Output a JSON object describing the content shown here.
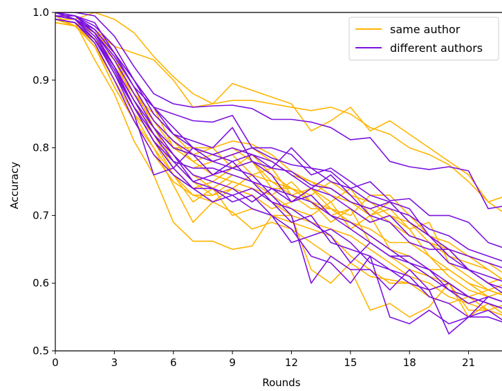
{
  "chart_data": {
    "type": "line",
    "xlabel": "Rounds",
    "ylabel": "Accuracy",
    "xlim": [
      0,
      22.7
    ],
    "ylim": [
      0.5,
      1.0
    ],
    "xticks": [
      "0",
      "3",
      "6",
      "9",
      "12",
      "15",
      "18",
      "21"
    ],
    "yticks": [
      "0.5",
      "0.6",
      "0.7",
      "0.8",
      "0.9",
      "1.0"
    ],
    "legend": {
      "position": "upper right",
      "entries": [
        "same author",
        "different authors"
      ]
    },
    "colors": {
      "same author": "#ffb400",
      "different authors": "#7b11e0"
    },
    "x": [
      0,
      1,
      2,
      3,
      4,
      5,
      6,
      7,
      8,
      9,
      10,
      11,
      12,
      13,
      14,
      15,
      16,
      17,
      18,
      19,
      20,
      21,
      22,
      23
    ],
    "series": [
      {
        "group": "same author",
        "values": [
          0.99,
          0.99,
          1.0,
          0.99,
          0.97,
          0.935,
          0.905,
          0.88,
          0.865,
          0.87,
          0.87,
          0.865,
          0.86,
          0.855,
          0.86,
          0.85,
          0.83,
          0.82,
          0.8,
          0.79,
          0.775,
          0.75,
          0.72,
          0.73
        ]
      },
      {
        "group": "same author",
        "values": [
          0.995,
          0.99,
          0.97,
          0.95,
          0.94,
          0.93,
          0.9,
          0.86,
          0.865,
          0.895,
          0.885,
          0.875,
          0.865,
          0.825,
          0.84,
          0.86,
          0.825,
          0.84,
          0.82,
          0.8,
          0.78,
          0.76,
          0.72,
          0.7
        ]
      },
      {
        "group": "same author",
        "values": [
          0.99,
          0.985,
          0.93,
          0.88,
          0.81,
          0.76,
          0.69,
          0.662,
          0.662,
          0.65,
          0.655,
          0.7,
          0.7,
          0.62,
          0.6,
          0.63,
          0.61,
          0.605,
          0.6,
          0.59,
          0.6,
          0.56,
          0.56,
          0.57
        ]
      },
      {
        "group": "same author",
        "values": [
          0.995,
          0.98,
          0.95,
          0.9,
          0.85,
          0.8,
          0.745,
          0.69,
          0.72,
          0.705,
          0.68,
          0.69,
          0.68,
          0.66,
          0.64,
          0.62,
          0.56,
          0.57,
          0.55,
          0.565,
          0.6,
          0.55,
          0.57,
          0.55
        ]
      },
      {
        "group": "same author",
        "values": [
          1.0,
          0.99,
          0.96,
          0.92,
          0.88,
          0.85,
          0.82,
          0.79,
          0.8,
          0.77,
          0.78,
          0.74,
          0.74,
          0.72,
          0.69,
          0.71,
          0.66,
          0.64,
          0.62,
          0.61,
          0.59,
          0.58,
          0.57,
          0.56
        ]
      },
      {
        "group": "same author",
        "values": [
          0.985,
          0.98,
          0.96,
          0.92,
          0.86,
          0.83,
          0.79,
          0.76,
          0.74,
          0.76,
          0.75,
          0.73,
          0.71,
          0.7,
          0.72,
          0.68,
          0.7,
          0.65,
          0.63,
          0.61,
          0.6,
          0.58,
          0.59,
          0.6
        ]
      },
      {
        "group": "same author",
        "values": [
          0.99,
          0.985,
          0.97,
          0.93,
          0.87,
          0.82,
          0.78,
          0.75,
          0.73,
          0.74,
          0.76,
          0.75,
          0.74,
          0.72,
          0.71,
          0.69,
          0.67,
          0.65,
          0.64,
          0.62,
          0.62,
          0.6,
          0.58,
          0.59
        ]
      },
      {
        "group": "same author",
        "values": [
          1.0,
          0.99,
          0.975,
          0.95,
          0.9,
          0.86,
          0.8,
          0.8,
          0.8,
          0.81,
          0.805,
          0.79,
          0.765,
          0.75,
          0.73,
          0.72,
          0.71,
          0.69,
          0.67,
          0.66,
          0.65,
          0.62,
          0.6,
          0.61
        ]
      },
      {
        "group": "same author",
        "values": [
          0.99,
          0.98,
          0.955,
          0.9,
          0.85,
          0.82,
          0.77,
          0.74,
          0.75,
          0.77,
          0.79,
          0.76,
          0.74,
          0.73,
          0.75,
          0.73,
          0.72,
          0.7,
          0.69,
          0.66,
          0.64,
          0.63,
          0.62,
          0.6
        ]
      },
      {
        "group": "same author",
        "values": [
          0.995,
          0.99,
          0.96,
          0.91,
          0.86,
          0.81,
          0.76,
          0.73,
          0.72,
          0.74,
          0.73,
          0.71,
          0.72,
          0.74,
          0.71,
          0.7,
          0.73,
          0.73,
          0.7,
          0.67,
          0.65,
          0.64,
          0.63,
          0.61
        ]
      },
      {
        "group": "same author",
        "values": [
          1.0,
          0.99,
          0.97,
          0.94,
          0.89,
          0.83,
          0.78,
          0.77,
          0.78,
          0.79,
          0.76,
          0.77,
          0.73,
          0.74,
          0.72,
          0.74,
          0.7,
          0.71,
          0.68,
          0.69,
          0.63,
          0.61,
          0.59,
          0.58
        ]
      },
      {
        "group": "same author",
        "values": [
          0.985,
          0.98,
          0.95,
          0.89,
          0.84,
          0.8,
          0.76,
          0.72,
          0.74,
          0.7,
          0.71,
          0.7,
          0.69,
          0.68,
          0.67,
          0.64,
          0.62,
          0.6,
          0.6,
          0.58,
          0.57,
          0.58,
          0.56,
          0.55
        ]
      },
      {
        "group": "same author",
        "values": [
          0.995,
          0.99,
          0.965,
          0.92,
          0.88,
          0.84,
          0.8,
          0.78,
          0.79,
          0.8,
          0.78,
          0.75,
          0.73,
          0.71,
          0.71,
          0.69,
          0.68,
          0.66,
          0.66,
          0.64,
          0.61,
          0.59,
          0.58,
          0.57
        ]
      },
      {
        "group": "same author",
        "values": [
          0.99,
          0.985,
          0.96,
          0.93,
          0.87,
          0.83,
          0.8,
          0.79,
          0.78,
          0.79,
          0.8,
          0.78,
          0.76,
          0.75,
          0.74,
          0.72,
          0.7,
          0.72,
          0.69,
          0.67,
          0.66,
          0.64,
          0.62,
          0.6
        ]
      },
      {
        "group": "same author",
        "values": [
          1.0,
          0.99,
          0.97,
          0.935,
          0.88,
          0.84,
          0.81,
          0.78,
          0.76,
          0.75,
          0.74,
          0.73,
          0.75,
          0.72,
          0.7,
          0.71,
          0.69,
          0.7,
          0.68,
          0.64,
          0.62,
          0.6,
          0.59,
          0.58
        ]
      },
      {
        "group": "same author",
        "values": [
          0.99,
          0.98,
          0.95,
          0.89,
          0.84,
          0.79,
          0.75,
          0.73,
          0.73,
          0.75,
          0.74,
          0.72,
          0.7,
          0.69,
          0.68,
          0.67,
          0.65,
          0.63,
          0.61,
          0.6,
          0.58,
          0.57,
          0.56,
          0.55
        ]
      },
      {
        "group": "different authors",
        "values": [
          1.0,
          1.0,
          0.995,
          0.965,
          0.92,
          0.88,
          0.865,
          0.86,
          0.862,
          0.863,
          0.858,
          0.842,
          0.842,
          0.838,
          0.83,
          0.812,
          0.815,
          0.78,
          0.772,
          0.768,
          0.772,
          0.766,
          0.71,
          0.715
        ]
      },
      {
        "group": "different authors",
        "values": [
          0.995,
          0.995,
          0.985,
          0.94,
          0.9,
          0.86,
          0.85,
          0.84,
          0.838,
          0.848,
          0.8,
          0.785,
          0.775,
          0.77,
          0.765,
          0.74,
          0.75,
          0.722,
          0.725,
          0.7,
          0.7,
          0.69,
          0.66,
          0.65
        ]
      },
      {
        "group": "different authors",
        "values": [
          0.99,
          0.985,
          0.96,
          0.91,
          0.85,
          0.76,
          0.77,
          0.8,
          0.78,
          0.77,
          0.76,
          0.73,
          0.7,
          0.6,
          0.64,
          0.62,
          0.62,
          0.59,
          0.62,
          0.59,
          0.6,
          0.58,
          0.57,
          0.56
        ]
      },
      {
        "group": "different authors",
        "values": [
          1.0,
          0.99,
          0.97,
          0.92,
          0.87,
          0.83,
          0.79,
          0.75,
          0.74,
          0.73,
          0.74,
          0.72,
          0.69,
          0.7,
          0.66,
          0.65,
          0.64,
          0.62,
          0.6,
          0.59,
          0.525,
          0.55,
          0.58,
          0.57
        ]
      },
      {
        "group": "different authors",
        "values": [
          1.0,
          0.995,
          0.97,
          0.935,
          0.89,
          0.86,
          0.83,
          0.8,
          0.79,
          0.78,
          0.79,
          0.77,
          0.765,
          0.745,
          0.74,
          0.72,
          0.71,
          0.72,
          0.69,
          0.67,
          0.64,
          0.62,
          0.6,
          0.58
        ]
      },
      {
        "group": "different authors",
        "values": [
          0.995,
          0.99,
          0.96,
          0.92,
          0.86,
          0.81,
          0.78,
          0.77,
          0.77,
          0.76,
          0.75,
          0.74,
          0.73,
          0.72,
          0.7,
          0.69,
          0.67,
          0.65,
          0.63,
          0.61,
          0.59,
          0.58,
          0.57,
          0.56
        ]
      },
      {
        "group": "different authors",
        "values": [
          1.0,
          0.99,
          0.975,
          0.94,
          0.9,
          0.85,
          0.82,
          0.81,
          0.8,
          0.83,
          0.78,
          0.77,
          0.8,
          0.77,
          0.75,
          0.74,
          0.72,
          0.71,
          0.7,
          0.68,
          0.67,
          0.65,
          0.64,
          0.63
        ]
      },
      {
        "group": "different authors",
        "values": [
          0.99,
          0.985,
          0.955,
          0.9,
          0.84,
          0.79,
          0.76,
          0.74,
          0.72,
          0.73,
          0.71,
          0.7,
          0.66,
          0.67,
          0.68,
          0.66,
          0.63,
          0.62,
          0.61,
          0.58,
          0.57,
          0.55,
          0.55,
          0.54
        ]
      },
      {
        "group": "different authors",
        "values": [
          1.0,
          0.995,
          0.98,
          0.95,
          0.9,
          0.86,
          0.82,
          0.8,
          0.79,
          0.8,
          0.79,
          0.78,
          0.76,
          0.74,
          0.76,
          0.73,
          0.7,
          0.69,
          0.66,
          0.65,
          0.65,
          0.62,
          0.61,
          0.6
        ]
      },
      {
        "group": "different authors",
        "values": [
          0.995,
          0.99,
          0.965,
          0.92,
          0.87,
          0.82,
          0.79,
          0.76,
          0.75,
          0.74,
          0.72,
          0.74,
          0.72,
          0.73,
          0.7,
          0.68,
          0.66,
          0.64,
          0.64,
          0.62,
          0.6,
          0.58,
          0.57,
          0.56
        ]
      },
      {
        "group": "different authors",
        "values": [
          1.0,
          0.99,
          0.97,
          0.93,
          0.88,
          0.83,
          0.8,
          0.79,
          0.76,
          0.77,
          0.78,
          0.76,
          0.72,
          0.74,
          0.73,
          0.71,
          0.69,
          0.7,
          0.67,
          0.66,
          0.63,
          0.62,
          0.6,
          0.59
        ]
      },
      {
        "group": "different authors",
        "values": [
          0.99,
          0.985,
          0.96,
          0.91,
          0.86,
          0.82,
          0.78,
          0.75,
          0.76,
          0.78,
          0.75,
          0.72,
          0.71,
          0.69,
          0.67,
          0.63,
          0.66,
          0.64,
          0.63,
          0.62,
          0.59,
          0.57,
          0.58,
          0.57
        ]
      },
      {
        "group": "different authors",
        "values": [
          1.0,
          0.995,
          0.975,
          0.94,
          0.89,
          0.84,
          0.81,
          0.79,
          0.78,
          0.79,
          0.8,
          0.8,
          0.79,
          0.76,
          0.77,
          0.75,
          0.73,
          0.72,
          0.71,
          0.67,
          0.65,
          0.64,
          0.63,
          0.62
        ]
      },
      {
        "group": "different authors",
        "values": [
          0.995,
          0.99,
          0.96,
          0.915,
          0.86,
          0.81,
          0.77,
          0.74,
          0.74,
          0.72,
          0.73,
          0.7,
          0.68,
          0.64,
          0.63,
          0.6,
          0.64,
          0.55,
          0.54,
          0.56,
          0.54,
          0.55,
          0.56,
          0.54
        ]
      }
    ]
  }
}
